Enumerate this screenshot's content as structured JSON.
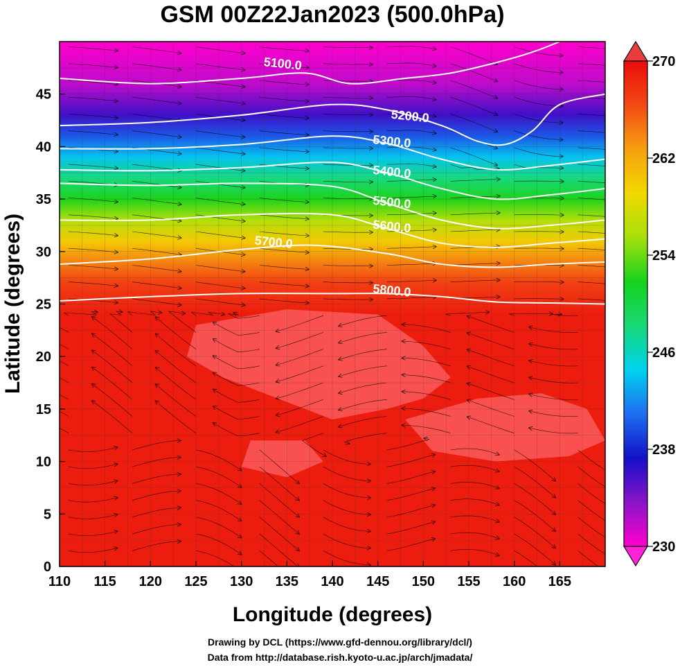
{
  "chart_data": {
    "type": "heatmap",
    "title": "GSM 00Z22Jan2023 (500.0hPa)",
    "xlabel": "Longitude (degrees)",
    "ylabel": "Latitude  (degrees)",
    "xlim": [
      110,
      170
    ],
    "ylim": [
      0,
      50
    ],
    "x_ticks": [
      110,
      115,
      120,
      125,
      130,
      135,
      140,
      145,
      150,
      155,
      160,
      165
    ],
    "y_ticks": [
      0,
      5,
      10,
      15,
      20,
      25,
      30,
      35,
      40,
      45
    ],
    "colorbar": {
      "range": [
        230,
        270
      ],
      "ticks": [
        230,
        238,
        246,
        254,
        262,
        270
      ],
      "colors": [
        "#ff00cc",
        "#8a14c8",
        "#1410c8",
        "#1e6ef0",
        "#00d2ee",
        "#18d878",
        "#16d21c",
        "#a6e00c",
        "#f2d800",
        "#f7a010",
        "#f24a14",
        "#ea0c0c"
      ]
    },
    "temperature_bands": [
      {
        "lat": 50,
        "value": 230
      },
      {
        "lat": 46,
        "value": 232
      },
      {
        "lat": 43,
        "value": 236
      },
      {
        "lat": 41,
        "value": 240
      },
      {
        "lat": 39,
        "value": 244
      },
      {
        "lat": 37,
        "value": 248
      },
      {
        "lat": 35,
        "value": 252
      },
      {
        "lat": 33,
        "value": 256
      },
      {
        "lat": 31,
        "value": 260
      },
      {
        "lat": 29,
        "value": 264
      },
      {
        "lat": 27,
        "value": 267
      },
      {
        "lat": 24,
        "value": 269
      },
      {
        "lat": 0,
        "value": 269
      }
    ],
    "contours": [
      {
        "label": "5100.0",
        "label_at": [
          134.5,
          47.5
        ],
        "points": [
          [
            110,
            46.5
          ],
          [
            120,
            46
          ],
          [
            130,
            46.5
          ],
          [
            137,
            47
          ],
          [
            142,
            46
          ],
          [
            148,
            46.5
          ],
          [
            153,
            47
          ],
          [
            158,
            48
          ],
          [
            162,
            49
          ],
          [
            165,
            50
          ]
        ]
      },
      {
        "label": "5200.0",
        "label_at": [
          148.5,
          42.5
        ],
        "points": [
          [
            110,
            42
          ],
          [
            120,
            42.3
          ],
          [
            130,
            43
          ],
          [
            140,
            44
          ],
          [
            146,
            43.5
          ],
          [
            152,
            42
          ],
          [
            156,
            40.5
          ],
          [
            159,
            40.2
          ],
          [
            162,
            41.5
          ],
          [
            165,
            44
          ],
          [
            170,
            45
          ]
        ]
      },
      {
        "label": "5300.0",
        "label_at": [
          146.5,
          40.1
        ],
        "points": [
          [
            110,
            39.8
          ],
          [
            120,
            39.8
          ],
          [
            130,
            40.2
          ],
          [
            140,
            41
          ],
          [
            146,
            40.3
          ],
          [
            152,
            38.8
          ],
          [
            158,
            37.8
          ],
          [
            164,
            38.2
          ],
          [
            170,
            38.8
          ]
        ]
      },
      {
        "label": "5400.0",
        "label_at": [
          146.5,
          37.2
        ],
        "points": [
          [
            110,
            37.8
          ],
          [
            120,
            37.7
          ],
          [
            130,
            38
          ],
          [
            140,
            38.5
          ],
          [
            146,
            37.5
          ],
          [
            152,
            36
          ],
          [
            158,
            35
          ],
          [
            164,
            35.4
          ],
          [
            170,
            36
          ]
        ]
      },
      {
        "label": "5500.0",
        "label_at": [
          146.5,
          34.3
        ],
        "points": [
          [
            110,
            36.5
          ],
          [
            120,
            36.3
          ],
          [
            130,
            36.5
          ],
          [
            140,
            36.2
          ],
          [
            146,
            34.6
          ],
          [
            152,
            33
          ],
          [
            158,
            32.2
          ],
          [
            164,
            32.5
          ],
          [
            170,
            33
          ]
        ]
      },
      {
        "label": "5600.0",
        "label_at": [
          146.5,
          32.0
        ],
        "points": [
          [
            110,
            33
          ],
          [
            120,
            33
          ],
          [
            130,
            33.5
          ],
          [
            140,
            33.5
          ],
          [
            146,
            32.2
          ],
          [
            152,
            30.8
          ],
          [
            158,
            30.4
          ],
          [
            164,
            30.8
          ],
          [
            170,
            31.2
          ]
        ]
      },
      {
        "label": "5700.0",
        "label_at": [
          133.5,
          30.5
        ],
        "points": [
          [
            110,
            28.8
          ],
          [
            120,
            29.3
          ],
          [
            130,
            30.2
          ],
          [
            138,
            30.6
          ],
          [
            146,
            29.8
          ],
          [
            152,
            28.8
          ],
          [
            158,
            28.5
          ],
          [
            164,
            28.8
          ],
          [
            170,
            29
          ]
        ]
      },
      {
        "label": "5800.0",
        "label_at": [
          146.5,
          25.9
        ],
        "points": [
          [
            110,
            25.3
          ],
          [
            120,
            25.7
          ],
          [
            130,
            26
          ],
          [
            140,
            26
          ],
          [
            146,
            26
          ],
          [
            152,
            25.7
          ],
          [
            158,
            25.2
          ],
          [
            164,
            25.1
          ],
          [
            170,
            25
          ]
        ]
      }
    ],
    "warm_patches": [
      [
        [
          125,
          23
        ],
        [
          135,
          24.5
        ],
        [
          145,
          24
        ],
        [
          150,
          21
        ],
        [
          153,
          18
        ],
        [
          150,
          16
        ],
        [
          146,
          15
        ],
        [
          140,
          14
        ],
        [
          134,
          16
        ],
        [
          128,
          18
        ],
        [
          124,
          20
        ]
      ],
      [
        [
          148,
          14
        ],
        [
          156,
          16
        ],
        [
          163,
          16.5
        ],
        [
          168,
          15
        ],
        [
          170,
          12
        ],
        [
          166,
          10.5
        ],
        [
          158,
          10
        ],
        [
          151,
          11
        ]
      ],
      [
        [
          131,
          12
        ],
        [
          137,
          12
        ],
        [
          139,
          10
        ],
        [
          135,
          8.5
        ],
        [
          130,
          9.5
        ]
      ]
    ]
  },
  "footer": {
    "line1": "Drawing by DCL (https://www.gfd-dennou.org/library/dcl/)",
    "line2": "Data from http://database.rish.kyoto-u.ac.jp/arch/jmadata/"
  }
}
